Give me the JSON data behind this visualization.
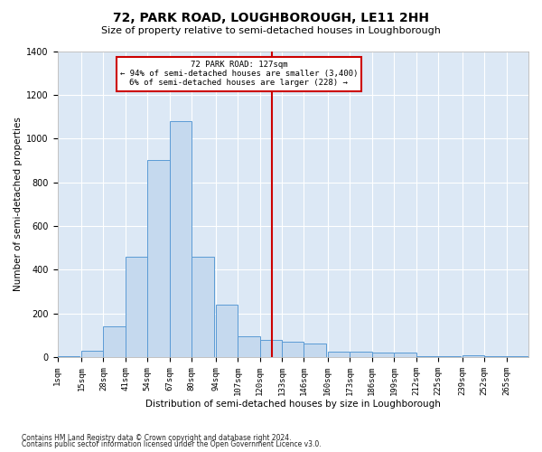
{
  "title": "72, PARK ROAD, LOUGHBOROUGH, LE11 2HH",
  "subtitle": "Size of property relative to semi-detached houses in Loughborough",
  "xlabel": "Distribution of semi-detached houses by size in Loughborough",
  "ylabel": "Number of semi-detached properties",
  "footnote1": "Contains HM Land Registry data © Crown copyright and database right 2024.",
  "footnote2": "Contains public sector information licensed under the Open Government Licence v3.0.",
  "annotation_title": "72 PARK ROAD: 127sqm",
  "annotation_smaller": "← 94% of semi-detached houses are smaller (3,400)",
  "annotation_larger": "6% of semi-detached houses are larger (228) →",
  "property_value": 127,
  "bar_color": "#c5d9ee",
  "bar_edge_color": "#5b9bd5",
  "vline_color": "#cc0000",
  "annotation_box_edgecolor": "#cc0000",
  "plot_bg_color": "#dce8f5",
  "grid_color": "#ffffff",
  "bins_left": [
    1,
    15,
    28,
    41,
    54,
    67,
    80,
    94,
    107,
    120,
    133,
    146,
    160,
    173,
    186,
    199,
    212,
    225,
    239,
    252,
    265
  ],
  "bin_width": 13,
  "bin_labels": [
    "1sqm",
    "15sqm",
    "28sqm",
    "41sqm",
    "54sqm",
    "67sqm",
    "80sqm",
    "94sqm",
    "107sqm",
    "120sqm",
    "133sqm",
    "146sqm",
    "160sqm",
    "173sqm",
    "186sqm",
    "199sqm",
    "212sqm",
    "225sqm",
    "239sqm",
    "252sqm",
    "265sqm"
  ],
  "counts": [
    5,
    30,
    140,
    460,
    900,
    1080,
    460,
    240,
    95,
    80,
    70,
    60,
    25,
    25,
    20,
    20,
    5,
    5,
    10,
    5,
    5
  ],
  "ylim": [
    0,
    1400
  ],
  "yticks": [
    0,
    200,
    400,
    600,
    800,
    1000,
    1200,
    1400
  ],
  "xlim_left": 1,
  "xlim_right": 278
}
